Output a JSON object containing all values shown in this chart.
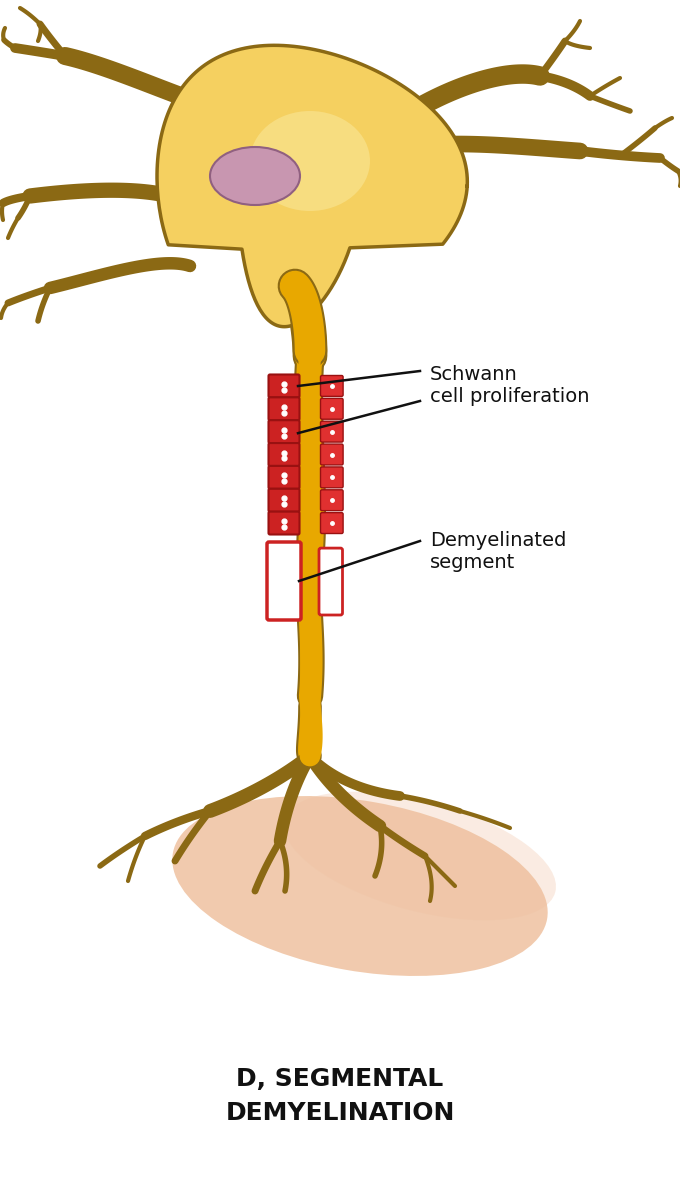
{
  "title_line1": "D, SEGMENTAL",
  "title_line2": "DEMYELINATION",
  "title_fontsize": 18,
  "title_fontweight": "bold",
  "bg_color": "#ffffff",
  "soma_color": "#f5d060",
  "soma_color2": "#f0c840",
  "soma_edge": "#8b6914",
  "axon_color": "#e8a800",
  "axon_color2": "#d4a020",
  "axon_edge_color": "#8b6914",
  "nucleus_color": "#c896b0",
  "nucleus_edge": "#906080",
  "dendrite_color": "#8b6914",
  "myelin_red": "#cc2222",
  "myelin_red2": "#e03030",
  "schwann_label": "Schwann\ncell proliferation",
  "demyelin_label": "Demyelinated\nsegment",
  "label_fontsize": 14,
  "tissue_color": "#e8a878",
  "annotation_color": "#111111"
}
